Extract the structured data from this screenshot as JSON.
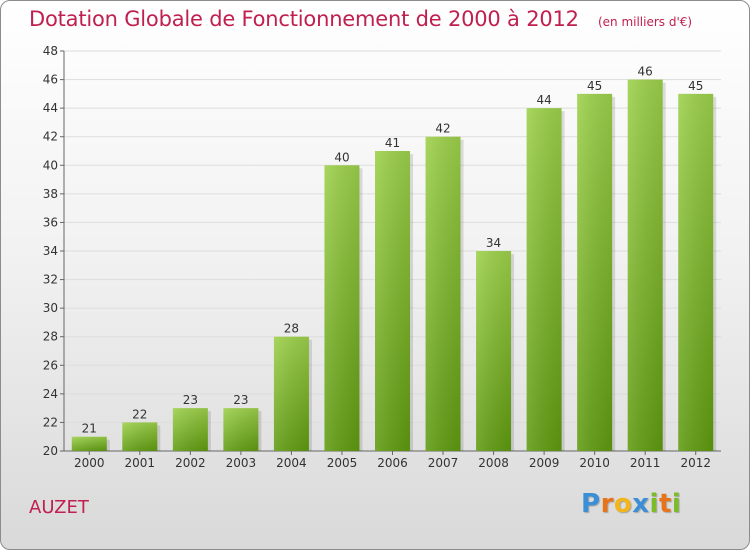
{
  "chart_data": {
    "type": "bar",
    "title": "Dotation Globale de Fonctionnement de 2000 à 2012",
    "subtitle": "(en milliers d'€)",
    "categories": [
      "2000",
      "2001",
      "2002",
      "2003",
      "2004",
      "2005",
      "2006",
      "2007",
      "2008",
      "2009",
      "2010",
      "2011",
      "2012"
    ],
    "values": [
      21,
      22,
      23,
      23,
      28,
      40,
      41,
      42,
      34,
      44,
      45,
      46,
      45
    ],
    "ylim": [
      20,
      48
    ],
    "yticks": [
      20,
      22,
      24,
      26,
      28,
      30,
      32,
      34,
      36,
      38,
      40,
      42,
      44,
      46,
      48
    ],
    "xlabel": "",
    "ylabel": "",
    "grid": true,
    "bar_color": "#7cbb2a"
  },
  "commune": "AUZET",
  "logo": {
    "letters": [
      "P",
      "r",
      "o",
      "x",
      "i",
      "t",
      "i"
    ],
    "colors": [
      "#3b8fd6",
      "#e8741a",
      "#f2b51c",
      "#3b8fd6",
      "#7cbb2a",
      "#e8741a",
      "#7cbb2a"
    ]
  }
}
